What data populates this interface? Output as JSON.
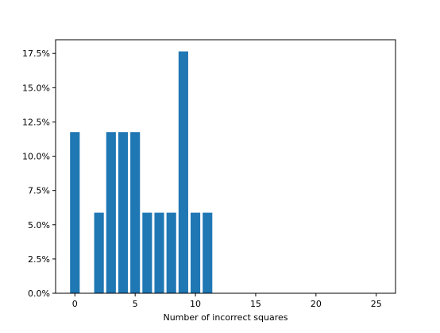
{
  "chart_data": {
    "type": "bar",
    "title": "",
    "xlabel": "Number of incorrect squares",
    "ylabel": "",
    "x": [
      0,
      1,
      2,
      3,
      4,
      5,
      6,
      7,
      8,
      9,
      10,
      11
    ],
    "values": [
      11.76,
      0,
      5.88,
      11.76,
      11.76,
      11.76,
      5.88,
      5.88,
      5.88,
      17.65,
      5.88,
      5.88
    ],
    "xlim": [
      -1.6,
      26.6
    ],
    "ylim": [
      0,
      18.5
    ],
    "xticks": [
      0,
      5,
      10,
      15,
      20,
      25
    ],
    "xtick_labels": [
      "0",
      "5",
      "10",
      "15",
      "20",
      "25"
    ],
    "yticks": [
      0,
      2.5,
      5,
      7.5,
      10,
      12.5,
      15,
      17.5
    ],
    "ytick_labels": [
      "0.0%",
      "2.5%",
      "5.0%",
      "7.5%",
      "10.0%",
      "12.5%",
      "15.0%",
      "17.5%"
    ],
    "bar_color": "#1f77b4",
    "grid": false,
    "legend": "none"
  }
}
